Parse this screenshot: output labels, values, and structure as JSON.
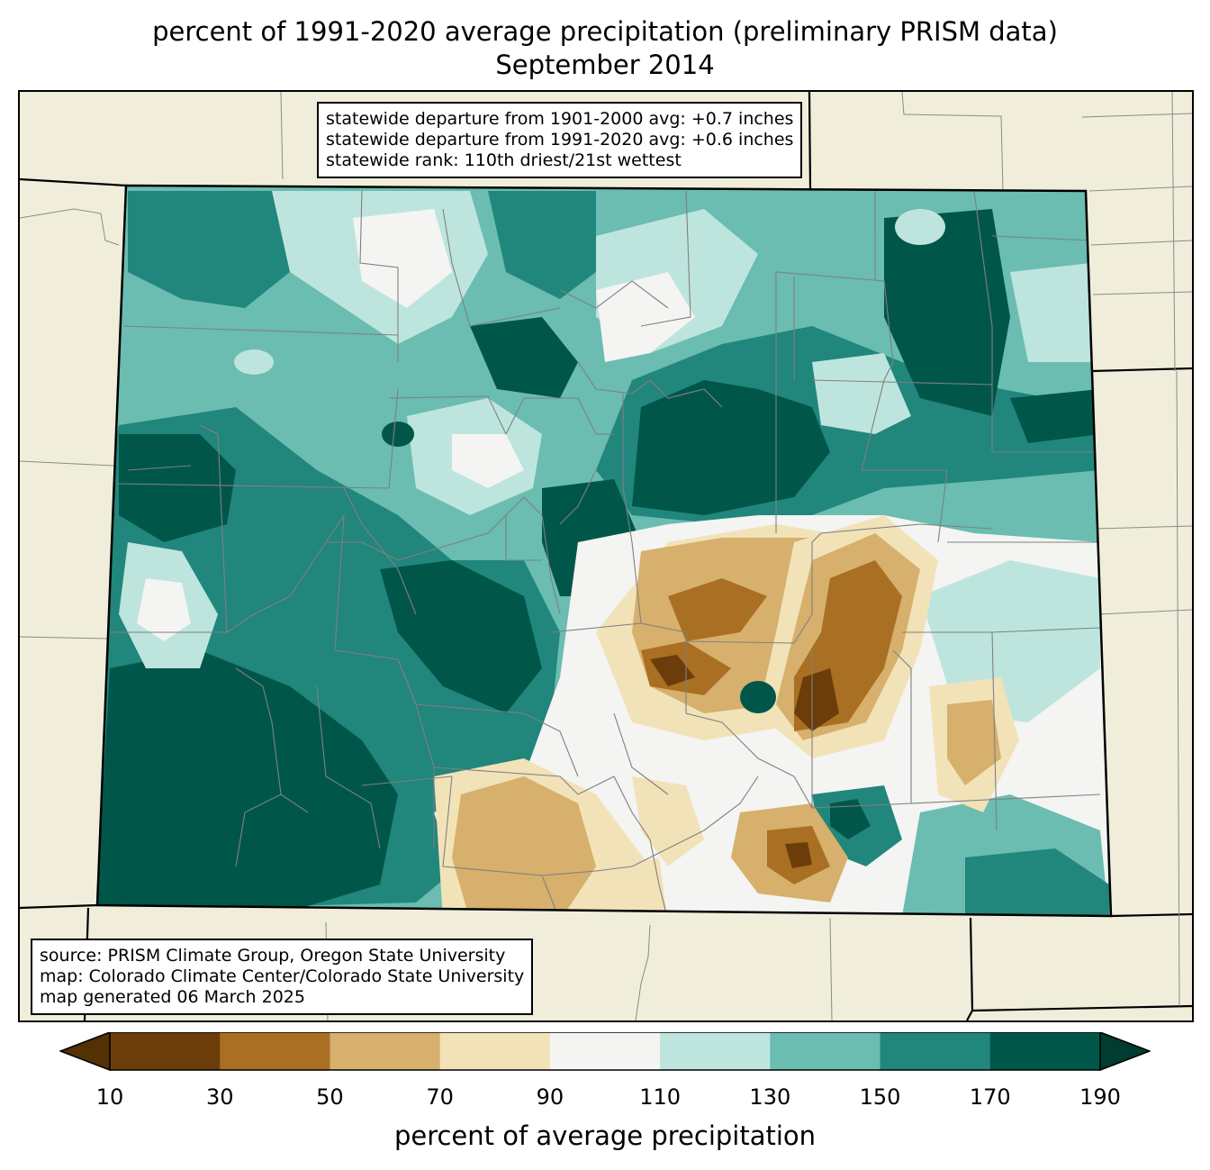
{
  "title": {
    "line1": "percent of 1991-2020 average precipitation (preliminary PRISM data)",
    "line2": "September 2014"
  },
  "stats_box": {
    "lines": [
      "statewide departure from 1901-2000 avg: +0.7 inches",
      "statewide departure from 1991-2020 avg: +0.6 inches",
      "statewide rank: 110th driest/21st wettest"
    ]
  },
  "source_box": {
    "lines": [
      "source: PRISM Climate Group, Oregon State University",
      "map: Colorado Climate Center/Colorado State University",
      "map generated 06 March 2025"
    ]
  },
  "colorbar": {
    "label": "percent of average precipitation",
    "ticks": [
      "10",
      "30",
      "50",
      "70",
      "90",
      "110",
      "130",
      "150",
      "170",
      "190"
    ],
    "under_color": "#543005",
    "over_color": "#003c30",
    "colors": [
      "#6b3d0a",
      "#a96f22",
      "#d6b06c",
      "#f2e2b8",
      "#f4f4f2",
      "#bde5de",
      "#6abdb0",
      "#21867c",
      "#01564a"
    ]
  },
  "colors": {
    "background_land": "#f0eedb",
    "county_lines": "#808080"
  }
}
